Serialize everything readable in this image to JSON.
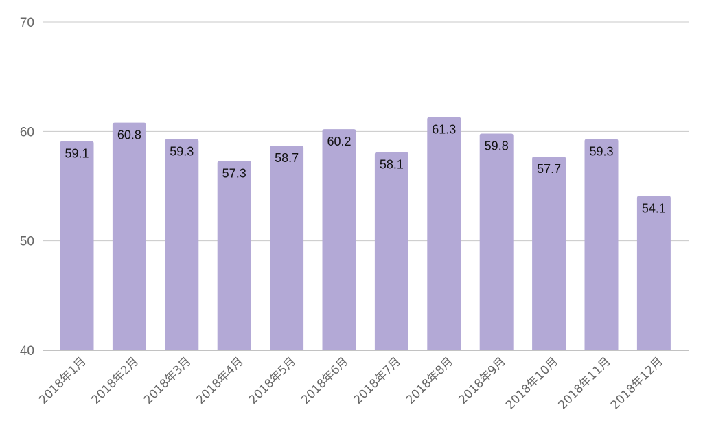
{
  "chart_data": {
    "type": "bar",
    "categories": [
      "2018年1月",
      "2018年2月",
      "2018年3月",
      "2018年4月",
      "2018年5月",
      "2018年6月",
      "2018年7月",
      "2018年8月",
      "2018年9月",
      "2018年10月",
      "2018年11月",
      "2018年12月"
    ],
    "values": [
      59.1,
      60.8,
      59.3,
      57.3,
      58.7,
      60.2,
      58.1,
      61.3,
      59.8,
      57.7,
      59.3,
      54.1
    ],
    "value_labels": [
      "59.1",
      "60.8",
      "59.3",
      "57.3",
      "58.7",
      "60.2",
      "58.1",
      "61.3",
      "59.8",
      "57.7",
      "59.3",
      "54.1"
    ],
    "y_ticks": [
      "40",
      "50",
      "60",
      "70"
    ],
    "title": "",
    "xlabel": "",
    "ylabel": "",
    "ylim": [
      40,
      70
    ],
    "grid": true,
    "legend": "none",
    "bar_color": "#b3a9d6"
  }
}
